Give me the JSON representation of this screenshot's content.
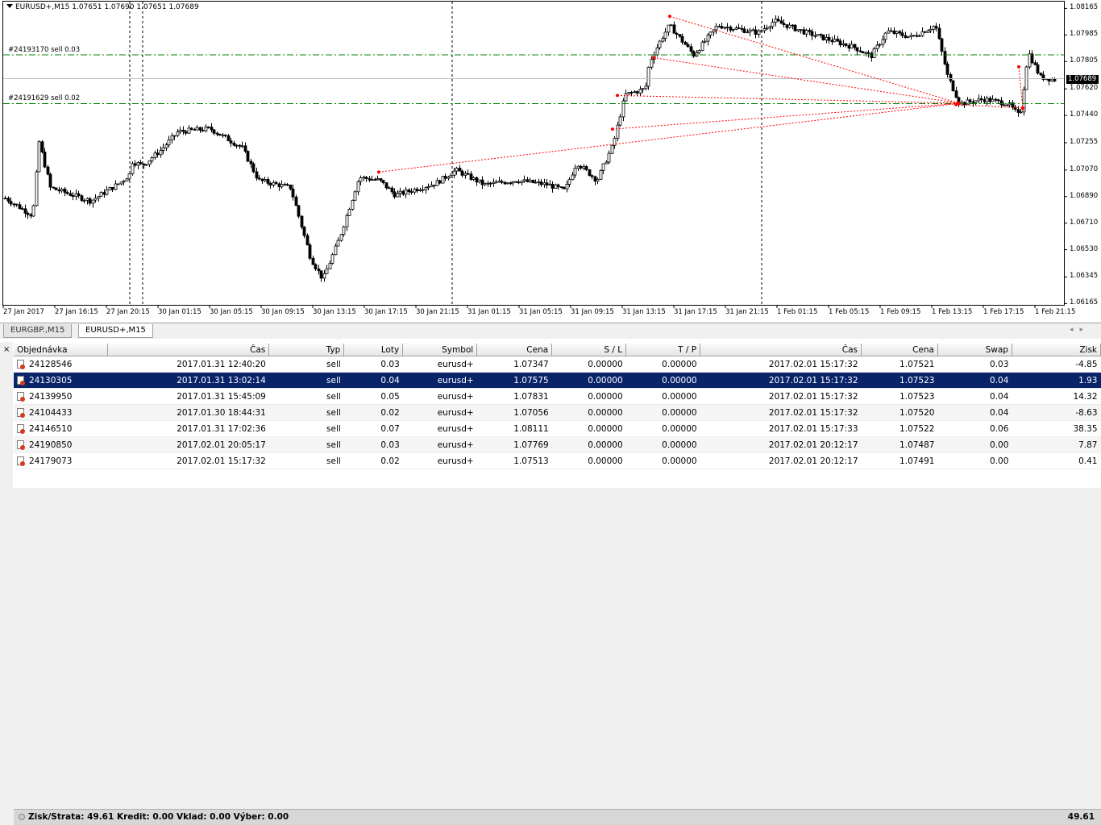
{
  "chart": {
    "title": "EURUSD+,M15  1.07651 1.07690 1.07651 1.07689",
    "current_price": "1.07689",
    "order_lines": [
      {
        "label": "#24193170 sell 0.03",
        "price": 1.0785
      },
      {
        "label": "#24191629 sell 0.02",
        "price": 1.0752
      }
    ],
    "price_axis": [
      "1.08165",
      "1.07985",
      "1.07805",
      "1.07620",
      "1.07440",
      "1.07255",
      "1.07070",
      "1.06890",
      "1.06710",
      "1.06530",
      "1.06345",
      "1.06165"
    ],
    "time_axis": [
      "27 Jan 2017",
      "27 Jan 16:15",
      "27 Jan 20:15",
      "30 Jan 01:15",
      "30 Jan 05:15",
      "30 Jan 09:15",
      "30 Jan 13:15",
      "30 Jan 17:15",
      "30 Jan 21:15",
      "31 Jan 01:15",
      "31 Jan 05:15",
      "31 Jan 09:15",
      "31 Jan 13:15",
      "31 Jan 17:15",
      "31 Jan 21:15",
      "1 Feb 01:15",
      "1 Feb 05:15",
      "1 Feb 09:15",
      "1 Feb 13:15",
      "1 Feb 17:15",
      "1 Feb 21:15"
    ],
    "colors": {
      "background": "#ffffff",
      "candle": "#000000",
      "order_line": "#008000",
      "history_line": "#ff0000",
      "bid_line": "#c0c0c0"
    }
  },
  "tabs": [
    {
      "label": "EURGBP.,M15",
      "active": false
    },
    {
      "label": "EURUSD+,M15",
      "active": true
    }
  ],
  "terminal": {
    "close_icon": "×",
    "columns": [
      "Objednávka",
      "Čas",
      "Typ",
      "Loty",
      "Symbol",
      "Cena",
      "S / L",
      "T / P",
      "Čas",
      "Cena",
      "Swap",
      "Zisk"
    ],
    "rows": [
      [
        "24128546",
        "2017.01.31 12:40:20",
        "sell",
        "0.03",
        "eurusd+",
        "1.07347",
        "0.00000",
        "0.00000",
        "2017.02.01 15:17:32",
        "1.07521",
        "0.03",
        "-4.85"
      ],
      [
        "24130305",
        "2017.01.31 13:02:14",
        "sell",
        "0.04",
        "eurusd+",
        "1.07575",
        "0.00000",
        "0.00000",
        "2017.02.01 15:17:32",
        "1.07523",
        "0.04",
        "1.93"
      ],
      [
        "24139950",
        "2017.01.31 15:45:09",
        "sell",
        "0.05",
        "eurusd+",
        "1.07831",
        "0.00000",
        "0.00000",
        "2017.02.01 15:17:32",
        "1.07523",
        "0.04",
        "14.32"
      ],
      [
        "24104433",
        "2017.01.30 18:44:31",
        "sell",
        "0.02",
        "eurusd+",
        "1.07056",
        "0.00000",
        "0.00000",
        "2017.02.01 15:17:32",
        "1.07520",
        "0.04",
        "-8.63"
      ],
      [
        "24146510",
        "2017.01.31 17:02:36",
        "sell",
        "0.07",
        "eurusd+",
        "1.08111",
        "0.00000",
        "0.00000",
        "2017.02.01 15:17:33",
        "1.07522",
        "0.06",
        "38.35"
      ],
      [
        "24190850",
        "2017.02.01 20:05:17",
        "sell",
        "0.03",
        "eurusd+",
        "1.07769",
        "0.00000",
        "0.00000",
        "2017.02.01 20:12:17",
        "1.07487",
        "0.00",
        "7.87"
      ],
      [
        "24179073",
        "2017.02.01 15:17:32",
        "sell",
        "0.02",
        "eurusd+",
        "1.07513",
        "0.00000",
        "0.00000",
        "2017.02.01 20:12:17",
        "1.07491",
        "0.00",
        "0.41"
      ]
    ],
    "selected_row": 1,
    "summary": "Zisk/Strata: 49.61  Kredit: 0.00  Vklad: 0.00  Výber: 0.00",
    "total": "49.61"
  }
}
